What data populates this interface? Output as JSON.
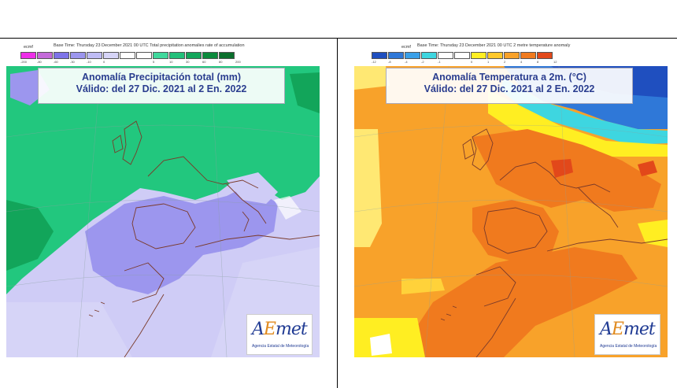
{
  "left_panel": {
    "source_label": "ecmf",
    "header": "Base Time: Thursday 23 December 2021 00 UTC Total precipitation anomalies rate of accumulation",
    "legend": {
      "colors": [
        "#ee2ee8",
        "#c46ad9",
        "#7e74e8",
        "#9c96ee",
        "#bfbcf5",
        "#d6d4f7",
        "#ffffff",
        "#ffffff",
        "#3fd89c",
        "#22c07a",
        "#12a55a",
        "#0b8a3c",
        "#0a6f2c"
      ],
      "ticks": [
        "-200",
        "-80",
        "-60",
        "-30",
        "-10",
        "0",
        "",
        "",
        "5",
        "10",
        "30",
        "60",
        "80",
        "200"
      ]
    },
    "title_line1": "Anomalía Precipitación total (mm)",
    "title_line2": "Válido: del 27 Dic. 2021 al 2 En. 2022",
    "logo_text_pre": "A",
    "logo_text_accent": "E",
    "logo_text_post": "met",
    "logo_sub": "Agencia Estatal de Meteorología",
    "colors": {
      "land_wet": "#22c77e",
      "dry_light": "#cfccf6",
      "dry_mid": "#9c96ee",
      "wet_dark": "#12a55a",
      "coast": "#7a3a2a"
    }
  },
  "right_panel": {
    "source_label": "ecmf",
    "header": "Base Time: Thursday 23 December 2021 00 UTC 2 metre temperature anomaly",
    "legend": {
      "colors": [
        "#1f4fbf",
        "#2f78d8",
        "#3aa0e8",
        "#3ed6e0",
        "#ffffff",
        "#ffffff",
        "#ffee22",
        "#ffc82a",
        "#f8a22a",
        "#f07a1e",
        "#e2481a"
      ],
      "ticks": [
        "-12",
        "-8",
        "-4",
        "-2",
        "-1",
        "",
        "0",
        "1",
        "2",
        "4",
        "8",
        "12"
      ]
    },
    "title_line1": "Anomalía Temperatura a 2m. (°C)",
    "title_line2": "Válido: del 27 Dic. 2021 al 2 En. 2022",
    "logo_text_pre": "A",
    "logo_text_accent": "E",
    "logo_text_post": "met",
    "logo_sub": "Agencia Estatal de Meteorología",
    "colors": {
      "warm": "#f8a22a",
      "hot": "#f07a1e",
      "mild": "#ffd23a",
      "cold": "#2f78d8",
      "coast": "#7a3a2a"
    }
  }
}
